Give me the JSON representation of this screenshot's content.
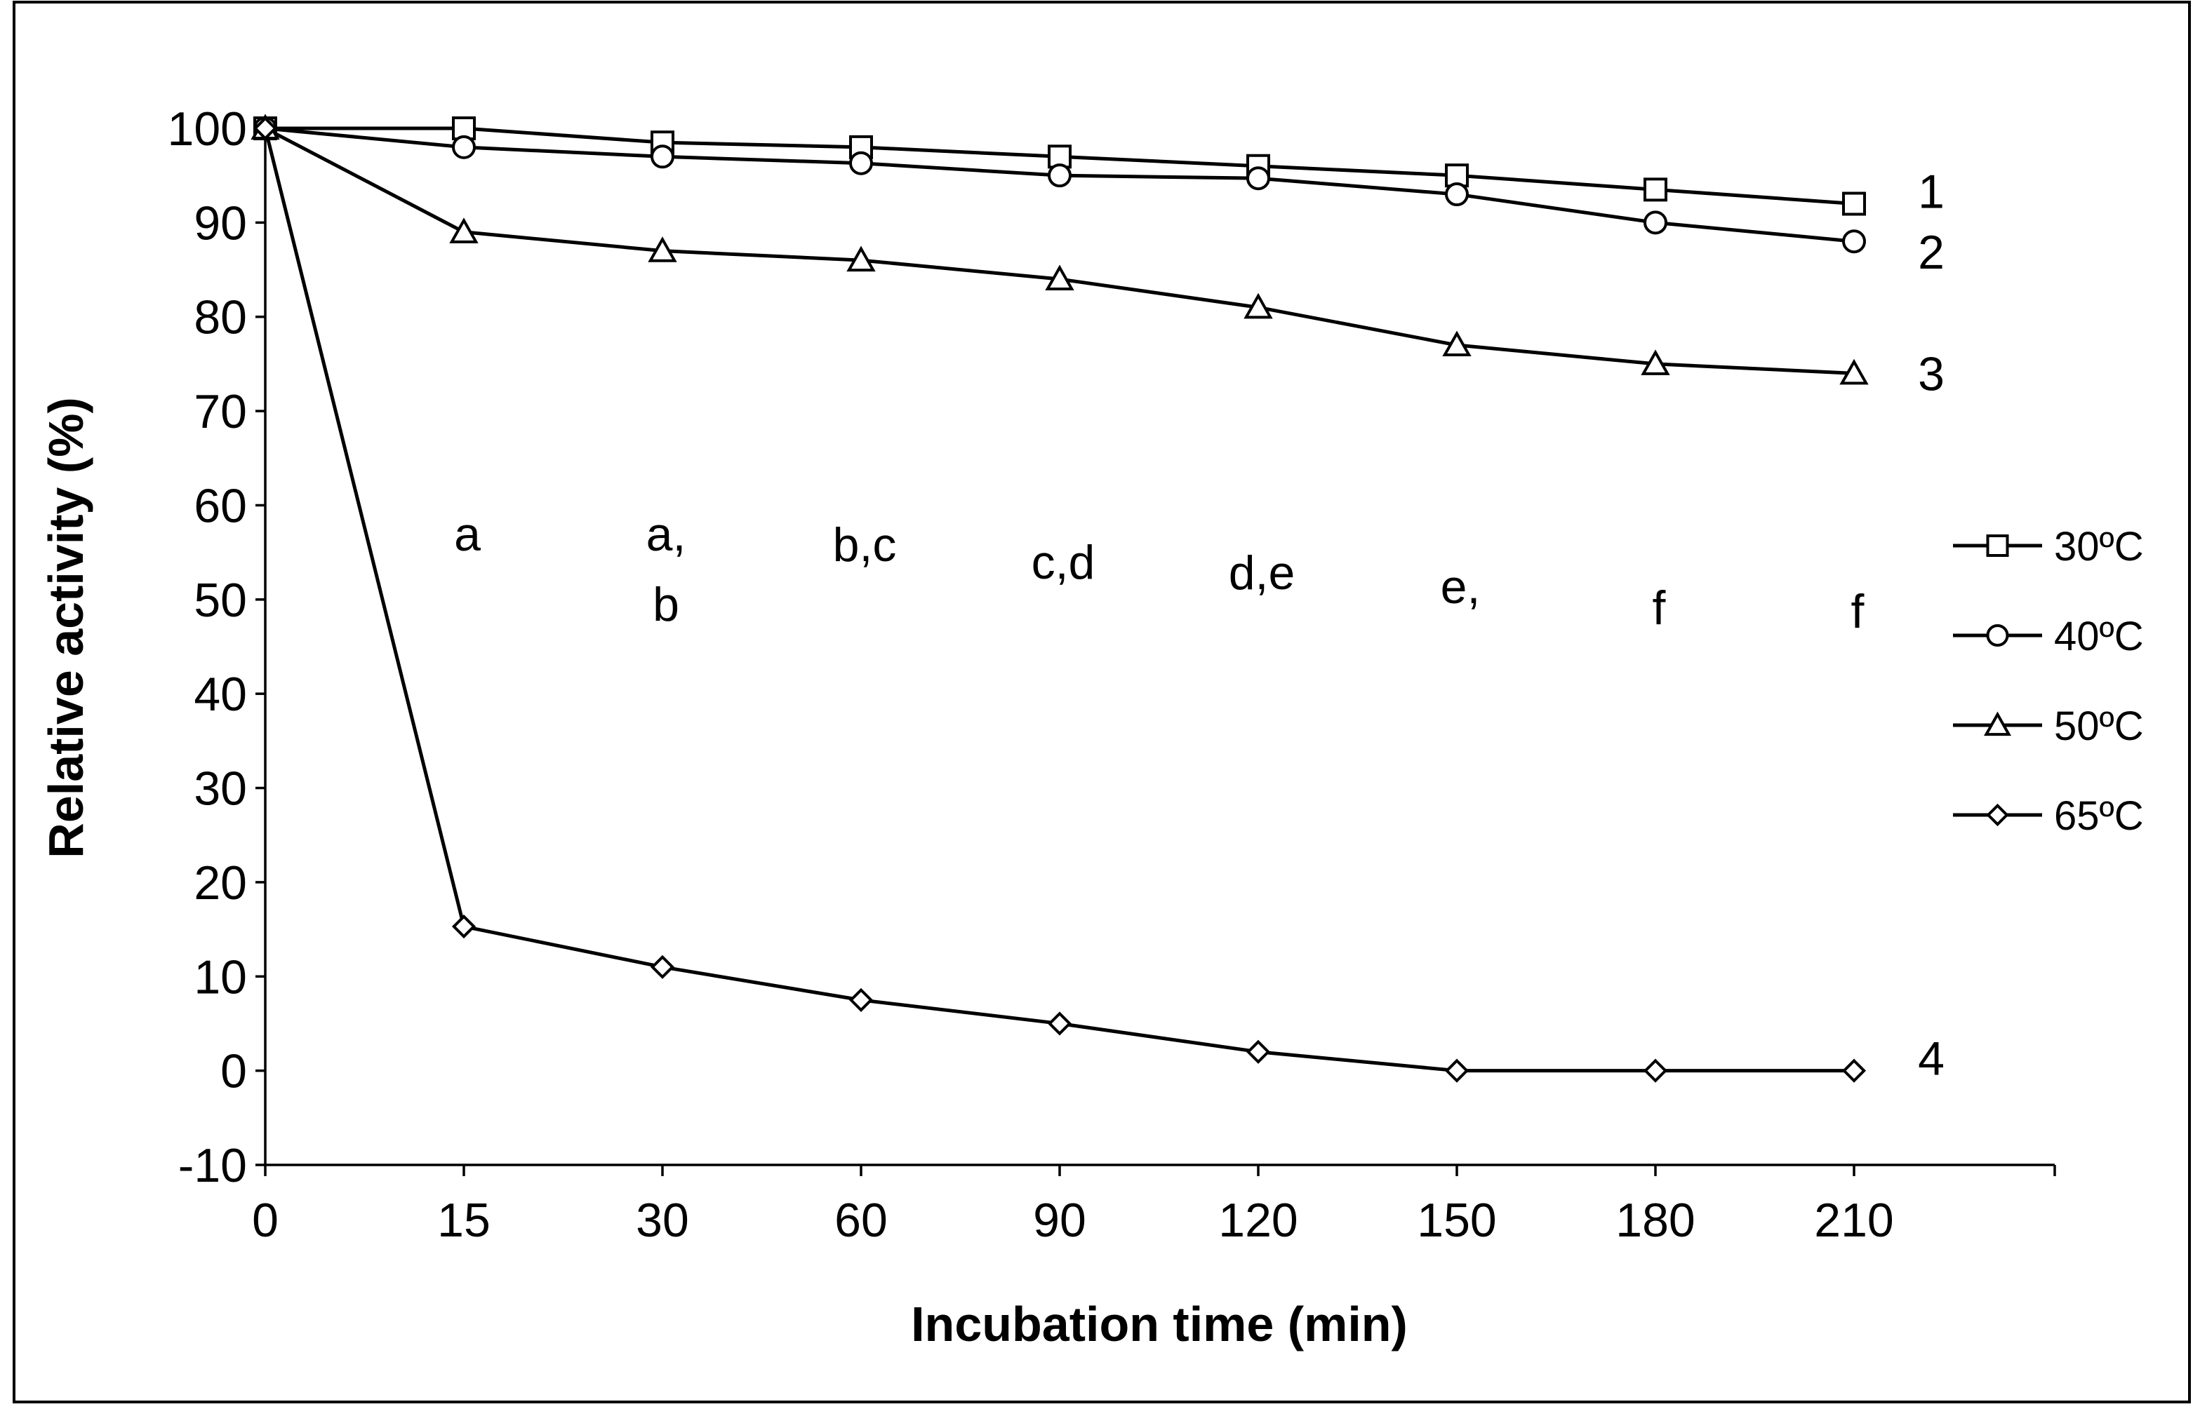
{
  "chart_data": {
    "type": "line",
    "title": "",
    "xlabel": "Incubation time (min)",
    "ylabel": "Relative activity (%)",
    "categories": [
      "0",
      "15",
      "30",
      "60",
      "90",
      "120",
      "150",
      "180",
      "210"
    ],
    "ylim": [
      -10,
      100
    ],
    "yticks": [
      -10,
      0,
      10,
      20,
      30,
      40,
      50,
      60,
      70,
      80,
      90,
      100
    ],
    "grid": false,
    "legend_position": "right",
    "colors": {
      "line": "#000000",
      "marker_fill": "#ffffff",
      "frame": "#000000"
    },
    "series": [
      {
        "name": "30ºC",
        "marker": "square",
        "curve_label": "1",
        "values": [
          100,
          100,
          98.5,
          98,
          97,
          96,
          95,
          93.5,
          92
        ]
      },
      {
        "name": "40ºC",
        "marker": "circle",
        "curve_label": "2",
        "values": [
          100,
          98,
          97,
          96.3,
          95,
          94.7,
          93,
          90,
          88
        ]
      },
      {
        "name": "50ºC",
        "marker": "triangle",
        "curve_label": "3",
        "values": [
          100,
          89,
          87,
          86,
          84,
          81,
          77,
          75,
          74
        ]
      },
      {
        "name": "65ºC",
        "marker": "diamond",
        "curve_label": "4",
        "values": [
          100,
          15.3,
          11,
          7.5,
          5,
          2,
          0,
          0,
          0
        ]
      }
    ],
    "annotations": [
      {
        "category": "15",
        "lines": [
          "a"
        ]
      },
      {
        "category": "30",
        "lines": [
          "a,",
          "b"
        ]
      },
      {
        "category": "60",
        "lines": [
          "b,c"
        ]
      },
      {
        "category": "90",
        "lines": [
          "c,d"
        ]
      },
      {
        "category": "120",
        "lines": [
          "d,e"
        ]
      },
      {
        "category": "150",
        "lines": [
          "e,"
        ]
      },
      {
        "category": "180",
        "lines": [
          "f"
        ]
      },
      {
        "category": "210",
        "lines": [
          "f"
        ]
      }
    ]
  }
}
